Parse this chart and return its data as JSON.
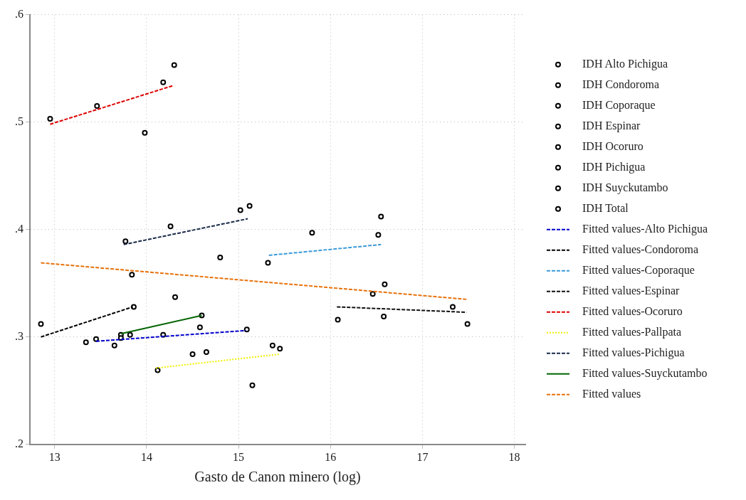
{
  "chart_data": {
    "type": "scatter",
    "xlabel": "Gasto de Canon minero (log)",
    "xlim": [
      12.73,
      18.12
    ],
    "xticks": [
      13,
      14,
      15,
      16,
      17,
      18
    ],
    "ylim": [
      0.2,
      0.6
    ],
    "yticks": [
      {
        "value": 0.2,
        "label": ".2"
      },
      {
        "value": 0.3,
        "label": ".3"
      },
      {
        "value": 0.4,
        "label": ".4"
      },
      {
        "value": 0.5,
        "label": ".5"
      },
      {
        "value": 0.6,
        "label": ".6"
      }
    ],
    "grid": true,
    "legend": "right",
    "series": [
      {
        "name": "IDH Alto Pichigua",
        "type": "scatter",
        "marker": "circle",
        "color": "#000000",
        "x": [
          13.45,
          13.65,
          13.82,
          14.18,
          15.09
        ],
        "values": [
          0.298,
          0.292,
          0.302,
          0.302,
          0.307
        ]
      },
      {
        "name": "IDH Condoroma",
        "type": "scatter",
        "marker": "circle",
        "color": "#000000",
        "x": [
          12.85,
          13.34,
          13.84,
          13.86
        ],
        "values": [
          0.312,
          0.295,
          0.358,
          0.328
        ]
      },
      {
        "name": "IDH Coporaque",
        "type": "scatter",
        "marker": "circle",
        "color": "#000000",
        "x": [
          15.32,
          15.8,
          16.52,
          16.55
        ],
        "values": [
          0.369,
          0.397,
          0.395,
          0.412
        ]
      },
      {
        "name": "IDH Espinar",
        "type": "scatter",
        "marker": "circle",
        "color": "#000000",
        "x": [
          16.08,
          16.46,
          16.58,
          16.59,
          17.33,
          17.49
        ],
        "values": [
          0.316,
          0.34,
          0.319,
          0.349,
          0.328,
          0.312
        ]
      },
      {
        "name": "IDH Ocoruro",
        "type": "scatter",
        "marker": "circle",
        "color": "#000000",
        "x": [
          12.95,
          13.46,
          13.98,
          14.18,
          14.3
        ],
        "values": [
          0.503,
          0.515,
          0.49,
          0.537,
          0.553
        ]
      },
      {
        "name": "IDH Pichigua",
        "type": "scatter",
        "marker": "circle",
        "color": "#000000",
        "x": [
          13.77,
          14.26,
          15.02,
          15.12
        ],
        "values": [
          0.389,
          0.403,
          0.418,
          0.422
        ]
      },
      {
        "name": "IDH Suyckutambo",
        "type": "scatter",
        "marker": "circle",
        "color": "#000000",
        "x": [
          13.72,
          13.72,
          14.58,
          14.6
        ],
        "values": [
          0.302,
          0.299,
          0.309,
          0.32
        ]
      },
      {
        "name": "IDH Total",
        "type": "scatter",
        "marker": "circle",
        "color": "#000000",
        "x": [
          14.12,
          14.31,
          14.5,
          14.65,
          14.8,
          15.15,
          15.37,
          15.45
        ],
        "values": [
          0.269,
          0.337,
          0.284,
          0.286,
          0.374,
          0.255,
          0.292,
          0.289
        ]
      },
      {
        "name": "Fitted values-Alto Pichigua",
        "type": "line",
        "color": "#0000cc",
        "line_style": "dashed",
        "x": [
          13.45,
          15.08
        ],
        "values": [
          0.296,
          0.306
        ]
      },
      {
        "name": "Fitted values-Condoroma",
        "type": "line",
        "color": "#000000",
        "line_style": "dashed",
        "x": [
          12.85,
          13.85
        ],
        "values": [
          0.3,
          0.328
        ]
      },
      {
        "name": "Fitted values-Coporaque",
        "type": "line",
        "color": "#3a9ad9",
        "line_style": "dashed",
        "x": [
          15.33,
          16.55
        ],
        "values": [
          0.376,
          0.386
        ]
      },
      {
        "name": "Fitted values-Espinar",
        "type": "line",
        "color": "#111111",
        "line_style": "dashed",
        "x": [
          16.07,
          17.48
        ],
        "values": [
          0.328,
          0.323
        ]
      },
      {
        "name": "Fitted values-Ocoruro",
        "type": "line",
        "color": "#dd0000",
        "line_style": "dashed",
        "x": [
          12.95,
          14.29
        ],
        "values": [
          0.498,
          0.534
        ]
      },
      {
        "name": "Fitted values-Pallpata",
        "type": "line",
        "color": "#f0f000",
        "line_style": "dotted",
        "x": [
          14.1,
          15.45
        ],
        "values": [
          0.271,
          0.284
        ]
      },
      {
        "name": "Fitted values-Pichigua",
        "type": "line",
        "color": "#1a2a4a",
        "line_style": "dashed",
        "x": [
          13.75,
          15.1
        ],
        "values": [
          0.386,
          0.41
        ]
      },
      {
        "name": "Fitted values-Suyckutambo",
        "type": "line",
        "color": "#006400",
        "line_style": "solid",
        "x": [
          13.72,
          14.6
        ],
        "values": [
          0.303,
          0.32
        ]
      },
      {
        "name": "Fitted values",
        "type": "line",
        "color": "#e8710a",
        "line_style": "dashed",
        "x": [
          12.85,
          17.48
        ],
        "values": [
          0.369,
          0.335
        ]
      }
    ]
  }
}
